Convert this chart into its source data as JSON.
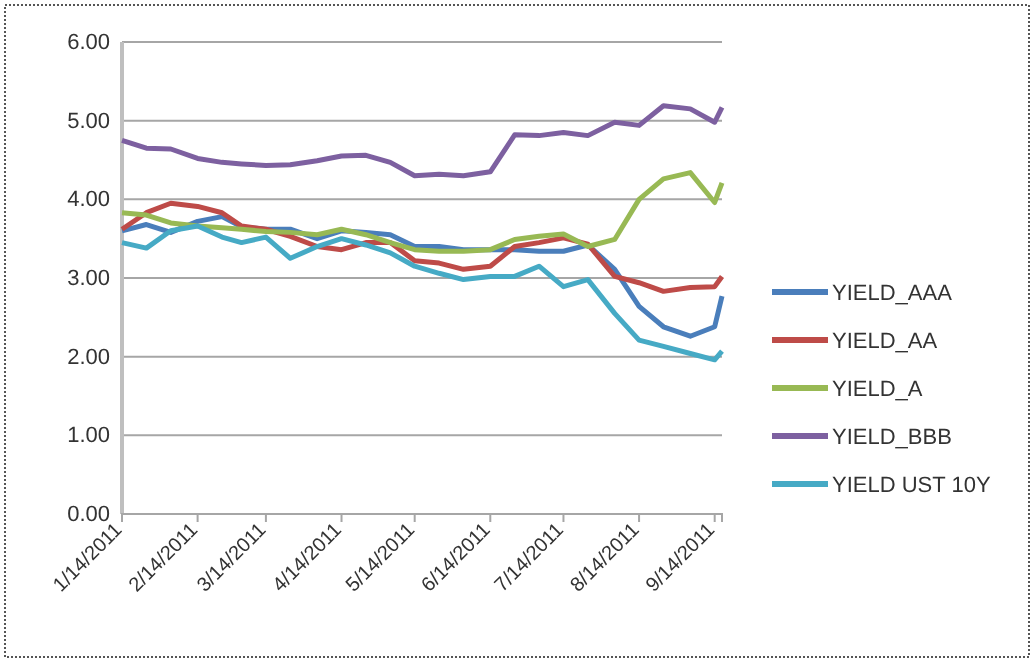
{
  "chart_data": {
    "type": "line",
    "x": [
      "2011-01-14",
      "2011-01-24",
      "2011-02-03",
      "2011-02-14",
      "2011-02-24",
      "2011-03-04",
      "2011-03-14",
      "2011-03-24",
      "2011-04-04",
      "2011-04-14",
      "2011-04-24",
      "2011-05-04",
      "2011-05-14",
      "2011-05-24",
      "2011-06-03",
      "2011-06-14",
      "2011-06-24",
      "2011-07-04",
      "2011-07-14",
      "2011-07-24",
      "2011-08-04",
      "2011-08-14",
      "2011-08-24",
      "2011-09-04",
      "2011-09-14",
      "2011-09-17"
    ],
    "series": [
      {
        "name": "YIELD_AAA",
        "color": "#4a7ebb",
        "values": [
          3.6,
          3.68,
          3.58,
          3.72,
          3.78,
          3.65,
          3.62,
          3.62,
          3.5,
          3.6,
          3.58,
          3.55,
          3.4,
          3.4,
          3.36,
          3.36,
          3.36,
          3.34,
          3.34,
          3.42,
          3.11,
          2.64,
          2.38,
          2.26,
          2.38,
          2.77
        ]
      },
      {
        "name": "YIELD_AA",
        "color": "#be4b48",
        "values": [
          3.62,
          3.83,
          3.95,
          3.91,
          3.83,
          3.66,
          3.62,
          3.53,
          3.4,
          3.36,
          3.45,
          3.45,
          3.22,
          3.19,
          3.11,
          3.15,
          3.4,
          3.45,
          3.51,
          3.43,
          3.02,
          2.94,
          2.83,
          2.88,
          2.89,
          3.02
        ]
      },
      {
        "name": "YIELD_A",
        "color": "#98b954",
        "values": [
          3.83,
          3.8,
          3.7,
          3.66,
          3.64,
          3.62,
          3.59,
          3.58,
          3.55,
          3.62,
          3.55,
          3.45,
          3.36,
          3.34,
          3.34,
          3.36,
          3.49,
          3.53,
          3.56,
          3.4,
          3.49,
          4.0,
          4.26,
          4.34,
          3.96,
          4.21
        ]
      },
      {
        "name": "YIELD_BBB",
        "color": "#7d60a0",
        "values": [
          4.75,
          4.65,
          4.64,
          4.52,
          4.47,
          4.45,
          4.43,
          4.44,
          4.49,
          4.55,
          4.56,
          4.47,
          4.3,
          4.32,
          4.3,
          4.35,
          4.82,
          4.81,
          4.85,
          4.81,
          4.98,
          4.94,
          5.19,
          5.15,
          4.98,
          5.17
        ]
      },
      {
        "name": "YIELD UST 10Y",
        "color": "#46aac5",
        "values": [
          3.45,
          3.38,
          3.6,
          3.66,
          3.52,
          3.45,
          3.52,
          3.25,
          3.4,
          3.5,
          3.42,
          3.32,
          3.15,
          3.06,
          2.98,
          3.02,
          3.02,
          3.15,
          2.89,
          2.98,
          2.55,
          2.21,
          2.13,
          2.04,
          1.96,
          2.07
        ]
      }
    ],
    "xlim": [
      "2011-01-14",
      "2011-09-17"
    ],
    "xticks": [
      {
        "value": "2011-01-14",
        "label": "1/14/2011"
      },
      {
        "value": "2011-02-14",
        "label": "2/14/2011"
      },
      {
        "value": "2011-03-14",
        "label": "3/14/2011"
      },
      {
        "value": "2011-04-14",
        "label": "4/14/2011"
      },
      {
        "value": "2011-05-14",
        "label": "5/14/2011"
      },
      {
        "value": "2011-06-14",
        "label": "6/14/2011"
      },
      {
        "value": "2011-07-14",
        "label": "7/14/2011"
      },
      {
        "value": "2011-08-14",
        "label": "8/14/2011"
      },
      {
        "value": "2011-09-14",
        "label": "9/14/2011"
      }
    ],
    "ylim": [
      0,
      6
    ],
    "yticks": [
      {
        "value": 0,
        "label": "0.00"
      },
      {
        "value": 1,
        "label": "1.00"
      },
      {
        "value": 2,
        "label": "2.00"
      },
      {
        "value": 3,
        "label": "3.00"
      },
      {
        "value": 4,
        "label": "4.00"
      },
      {
        "value": 5,
        "label": "5.00"
      },
      {
        "value": 6,
        "label": "6.00"
      }
    ],
    "grid": "y",
    "legend": "right",
    "marker": "none",
    "line_style": "solid"
  }
}
